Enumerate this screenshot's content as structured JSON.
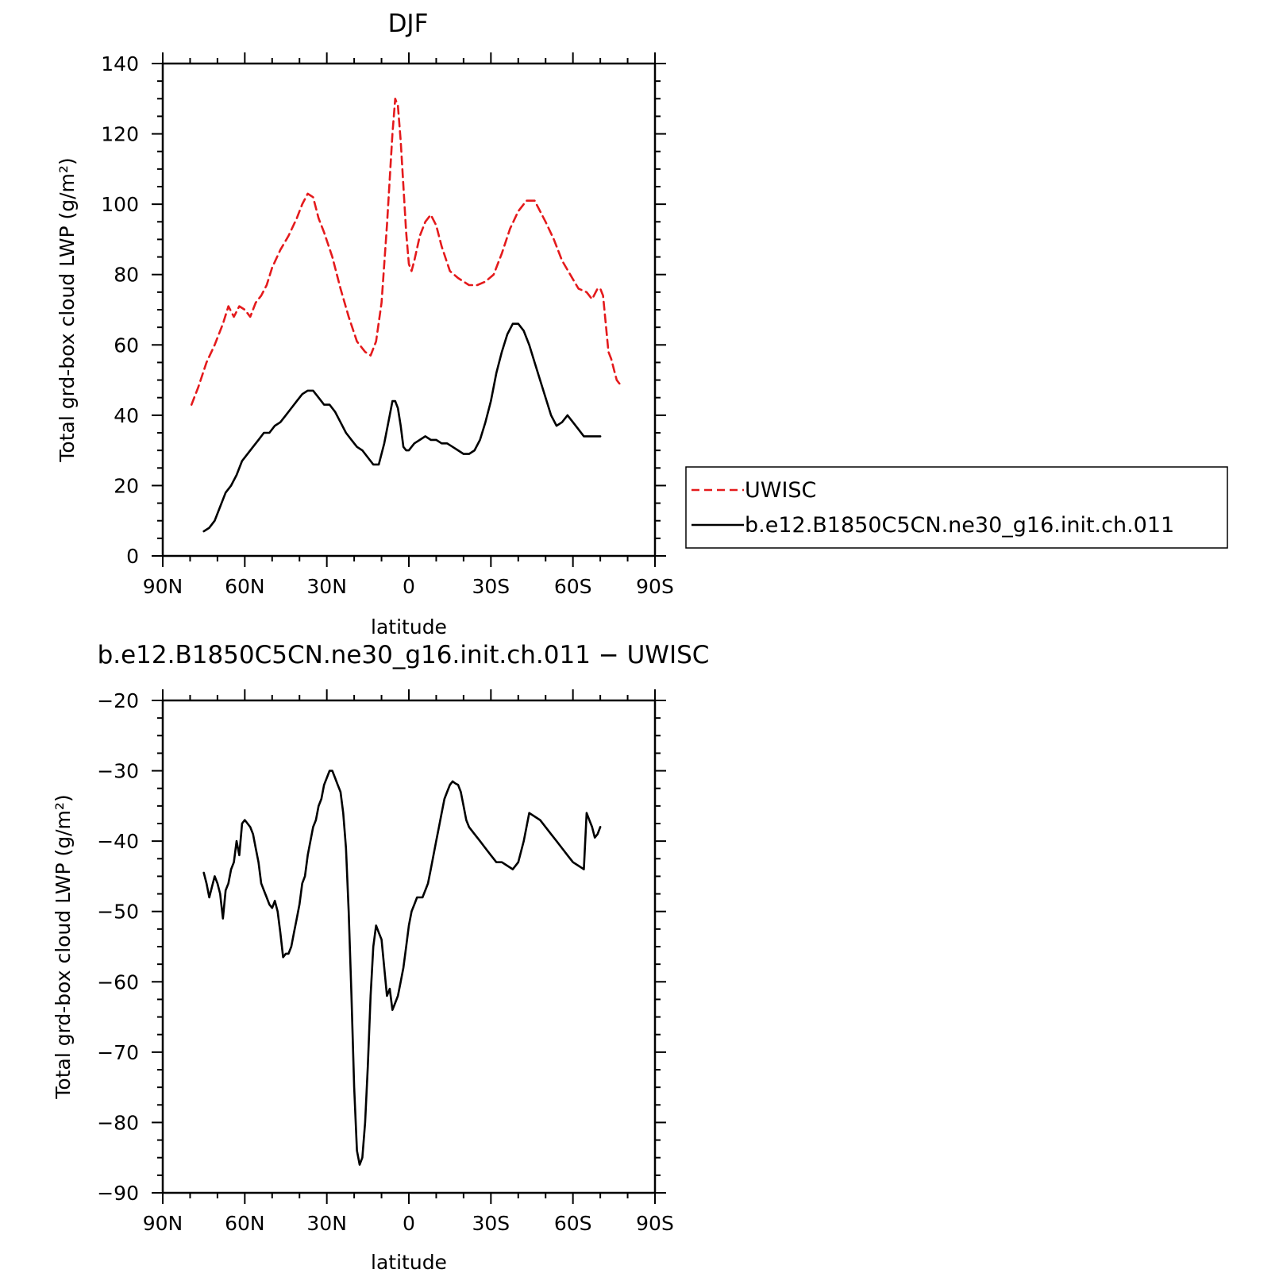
{
  "chart_data": [
    {
      "type": "line",
      "title": "DJF",
      "xlabel": "latitude",
      "ylabel": "Total grd-box cloud LWP (g/m²)",
      "xlim": [
        90,
        -90
      ],
      "ylim": [
        0,
        140
      ],
      "xticks": [
        {
          "value": 90,
          "label": "90N"
        },
        {
          "value": 60,
          "label": "60N"
        },
        {
          "value": 30,
          "label": "30N"
        },
        {
          "value": 0,
          "label": "0"
        },
        {
          "value": -30,
          "label": "30S"
        },
        {
          "value": -60,
          "label": "60S"
        },
        {
          "value": -90,
          "label": "90S"
        }
      ],
      "yticks": [
        {
          "value": 0,
          "label": "0"
        },
        {
          "value": 20,
          "label": "20"
        },
        {
          "value": 40,
          "label": "40"
        },
        {
          "value": 60,
          "label": "60"
        },
        {
          "value": 80,
          "label": "80"
        },
        {
          "value": 100,
          "label": "100"
        },
        {
          "value": 120,
          "label": "120"
        },
        {
          "value": 140,
          "label": "140"
        }
      ],
      "legend_placement": "right",
      "series": [
        {
          "name": "UWISC",
          "color": "#e41a1c",
          "dash": "dashed",
          "x": [
            79.5,
            77,
            74,
            71,
            68,
            66,
            64,
            62,
            60,
            58,
            56,
            54,
            52,
            50,
            47,
            44,
            41,
            39,
            37,
            35,
            33,
            31,
            28,
            25,
            22,
            19,
            16,
            14,
            12,
            10,
            8,
            6,
            5,
            4,
            3,
            1,
            0,
            -1,
            -2,
            -4,
            -6,
            -8,
            -10,
            -12,
            -15,
            -18,
            -20,
            -22,
            -25,
            -28,
            -31,
            -34,
            -37,
            -40,
            -43,
            -46,
            -48,
            -50,
            -53,
            -56,
            -59,
            -62,
            -65,
            -67,
            -69,
            -70,
            -71,
            -72,
            -73,
            -74,
            -75,
            -76,
            -77,
            -78
          ],
          "y": [
            43,
            48,
            55,
            60,
            66,
            71,
            68,
            71,
            70,
            68,
            72,
            74,
            77,
            82,
            87,
            91,
            96,
            100,
            103,
            102,
            96,
            92,
            85,
            76,
            68,
            61,
            58,
            57,
            61,
            72,
            94,
            120,
            130,
            128,
            118,
            92,
            83,
            81,
            84,
            91,
            95,
            97,
            94,
            88,
            81,
            79,
            78,
            77,
            77,
            78,
            80,
            86,
            93,
            98,
            101,
            101,
            98,
            95,
            90,
            84,
            80,
            76,
            75,
            73,
            76,
            76,
            74,
            66,
            58,
            56,
            53,
            50,
            49,
            49
          ],
          "note_on_tail": "ends near 49 at 78S"
        },
        {
          "name": "b.e12.B1850C5CN.ne30_g16.init.ch.011",
          "color": "#000000",
          "dash": "solid",
          "x": [
            75,
            73,
            71,
            69,
            67,
            65,
            63,
            61,
            59,
            57,
            55,
            53,
            51,
            49,
            47,
            45,
            43,
            41,
            39,
            37,
            35,
            33,
            31,
            29,
            27,
            25,
            23,
            21,
            19,
            17,
            15,
            13,
            11,
            9,
            7,
            6,
            5,
            4,
            3,
            2,
            1,
            0,
            -1,
            -2,
            -4,
            -6,
            -8,
            -10,
            -12,
            -14,
            -16,
            -18,
            -20,
            -22,
            -24,
            -26,
            -28,
            -30,
            -32,
            -34,
            -36,
            -38,
            -40,
            -42,
            -44,
            -46,
            -48,
            -50,
            -52,
            -54,
            -56,
            -58,
            -60,
            -62,
            -64,
            -66,
            -68,
            -70
          ],
          "y": [
            7,
            8,
            10,
            14,
            18,
            20,
            23,
            27,
            29,
            31,
            33,
            35,
            35,
            37,
            38,
            40,
            42,
            44,
            46,
            47,
            47,
            45,
            43,
            43,
            41,
            38,
            35,
            33,
            31,
            30,
            28,
            26,
            26,
            32,
            40,
            44,
            44,
            42,
            37,
            31,
            30,
            30,
            31,
            32,
            33,
            34,
            33,
            33,
            32,
            32,
            31,
            30,
            29,
            29,
            30,
            33,
            38,
            44,
            52,
            58,
            63,
            66,
            66,
            64,
            60,
            55,
            50,
            45,
            40,
            37,
            38,
            40,
            38,
            36,
            34,
            34,
            34,
            34
          ]
        }
      ]
    },
    {
      "type": "line",
      "title": "b.e12.B1850C5CN.ne30_g16.init.ch.011 − UWISC",
      "xlabel": "latitude",
      "ylabel": "Total grd-box cloud LWP (g/m²)",
      "xlim": [
        90,
        -90
      ],
      "ylim": [
        -90,
        -20
      ],
      "xticks": [
        {
          "value": 90,
          "label": "90N"
        },
        {
          "value": 60,
          "label": "60N"
        },
        {
          "value": 30,
          "label": "30N"
        },
        {
          "value": 0,
          "label": "0"
        },
        {
          "value": -30,
          "label": "30S"
        },
        {
          "value": -60,
          "label": "60S"
        },
        {
          "value": -90,
          "label": "90S"
        }
      ],
      "yticks": [
        {
          "value": -90,
          "label": "−90"
        },
        {
          "value": -80,
          "label": "−80"
        },
        {
          "value": -70,
          "label": "−70"
        },
        {
          "value": -60,
          "label": "−60"
        },
        {
          "value": -50,
          "label": "−50"
        },
        {
          "value": -40,
          "label": "−40"
        },
        {
          "value": -30,
          "label": "−30"
        },
        {
          "value": -20,
          "label": "−20"
        }
      ],
      "series": [
        {
          "color": "#000000",
          "dash": "solid",
          "x": [
            75,
            74,
            73,
            72,
            71,
            70,
            69,
            68,
            67,
            66,
            65,
            64,
            63,
            62,
            61,
            60,
            59,
            58,
            57,
            56,
            55,
            54,
            53,
            52,
            51,
            50,
            49,
            48,
            47,
            46,
            45,
            44,
            43,
            42,
            41,
            40,
            39,
            38,
            37,
            36,
            35,
            34,
            33,
            32,
            31,
            30,
            29,
            28,
            27,
            26,
            25,
            24,
            23,
            22,
            21,
            20,
            19,
            18,
            17,
            16,
            15,
            14,
            13,
            12,
            11,
            10,
            9,
            8,
            7,
            6,
            5,
            4,
            3,
            2,
            1,
            0,
            -1,
            -2,
            -3,
            -4,
            -5,
            -6,
            -7,
            -8,
            -9,
            -10,
            -11,
            -12,
            -13,
            -14,
            -15,
            -16,
            -17,
            -18,
            -19,
            -20,
            -21,
            -22,
            -24,
            -26,
            -28,
            -30,
            -32,
            -34,
            -36,
            -38,
            -40,
            -42,
            -44,
            -46,
            -48,
            -50,
            -52,
            -54,
            -56,
            -58,
            -60,
            -62,
            -64,
            -65,
            -66,
            -67,
            -68,
            -69,
            -70
          ],
          "y": [
            -44.5,
            -46,
            -48,
            -46.5,
            -45,
            -46,
            -47.5,
            -51,
            -47,
            -46,
            -44,
            -43,
            -40,
            -42,
            -37.5,
            -37,
            -37.5,
            -38,
            -39,
            -41,
            -43,
            -46,
            -47,
            -48,
            -49,
            -49.5,
            -48.5,
            -50,
            -53,
            -56.5,
            -56,
            -56,
            -55,
            -53,
            -51,
            -49,
            -46,
            -45,
            -42,
            -40,
            -38,
            -37,
            -35,
            -34,
            -32,
            -31,
            -30,
            -30,
            -31,
            -32,
            -33,
            -36,
            -41,
            -50,
            -62,
            -75,
            -84,
            -86,
            -85,
            -80,
            -72,
            -62,
            -55,
            -52,
            -53,
            -54,
            -58,
            -62,
            -61,
            -64,
            -63,
            -62,
            -60,
            -58,
            -55,
            -52,
            -50,
            -49,
            -48,
            -48,
            -48,
            -47,
            -46,
            -44,
            -42,
            -40,
            -38,
            -36,
            -34,
            -33,
            -32,
            -31.5,
            -31.8,
            -32,
            -33,
            -35,
            -37,
            -38,
            -39,
            -40,
            -41,
            -42,
            -43,
            -43,
            -43.5,
            -44,
            -43,
            -40,
            -36,
            -36.5,
            -37,
            -38,
            -39,
            -40,
            -41,
            -42,
            -43,
            -43.5,
            -44,
            -36,
            -37,
            -38,
            -39.5,
            -39,
            -38
          ]
        }
      ]
    }
  ]
}
